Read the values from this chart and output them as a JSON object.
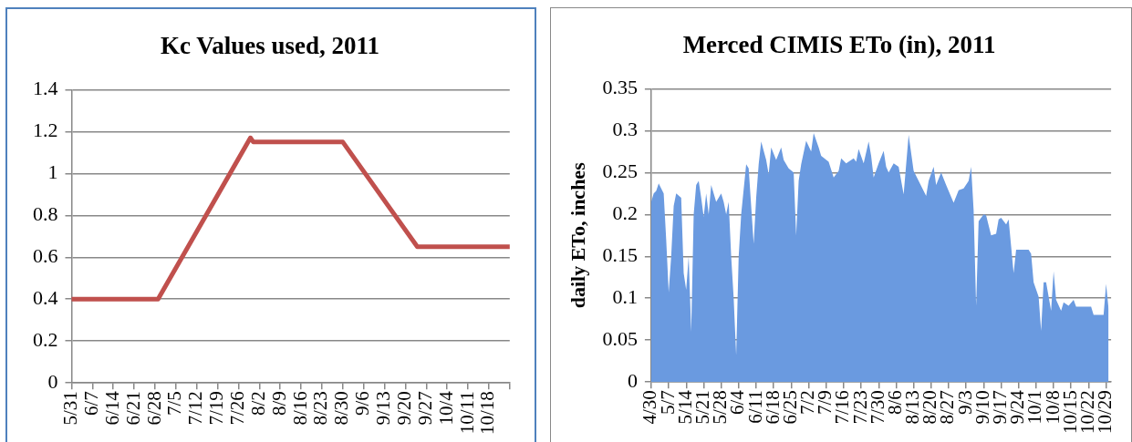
{
  "chart_data": [
    {
      "type": "line",
      "title": "Kc Values used, 2011",
      "color": "#c0504d",
      "marker": "none",
      "line_style": "solid",
      "grid": "y",
      "legend": false,
      "x": [
        "--05-31",
        "--06-29",
        "--07-30",
        "--07-31",
        "--08-30",
        "--09-24",
        "--10-25"
      ],
      "values": [
        0.4,
        0.4,
        1.17,
        1.15,
        1.15,
        0.65,
        0.65
      ],
      "xlim": [
        "--05-31",
        "--10-25"
      ],
      "xticks": [
        {
          "value": "--05-31",
          "label": "5/31"
        },
        {
          "value": "--06-07",
          "label": "6/7"
        },
        {
          "value": "--06-14",
          "label": "6/14"
        },
        {
          "value": "--06-21",
          "label": "6/21"
        },
        {
          "value": "--06-28",
          "label": "6/28"
        },
        {
          "value": "--07-05",
          "label": "7/5"
        },
        {
          "value": "--07-12",
          "label": "7/12"
        },
        {
          "value": "--07-19",
          "label": "7/19"
        },
        {
          "value": "--07-26",
          "label": "7/26"
        },
        {
          "value": "--08-02",
          "label": "8/2"
        },
        {
          "value": "--08-09",
          "label": "8/9"
        },
        {
          "value": "--08-16",
          "label": "8/16"
        },
        {
          "value": "--08-23",
          "label": "8/23"
        },
        {
          "value": "--08-30",
          "label": "8/30"
        },
        {
          "value": "--09-06",
          "label": "9/6"
        },
        {
          "value": "--09-13",
          "label": "9/13"
        },
        {
          "value": "--09-20",
          "label": "9/20"
        },
        {
          "value": "--09-27",
          "label": "9/27"
        },
        {
          "value": "--10-04",
          "label": "10/4"
        },
        {
          "value": "--10-11",
          "label": "10/11"
        },
        {
          "value": "--10-18",
          "label": "10/18"
        },
        {
          "value": "--10-25",
          "label": null
        }
      ],
      "ylim": [
        0,
        1.4
      ],
      "yticks": [
        0,
        0.2,
        0.4,
        0.6,
        0.8,
        1,
        1.2,
        1.4
      ]
    },
    {
      "type": "area",
      "title": "Merced CIMIS ETo (in), 2011",
      "ylabel": "daily ETo, inches",
      "color": "#6a9ae0",
      "marker": "none",
      "grid": "y",
      "legend": false,
      "x": [
        "--04-30",
        "--05-01",
        "--05-02",
        "--05-03",
        "--05-05",
        "--05-06",
        "--05-07",
        "--05-08",
        "--05-09",
        "--05-10",
        "--05-12",
        "--05-13",
        "--05-14",
        "--05-15",
        "--05-16",
        "--05-17",
        "--05-18",
        "--05-19",
        "--05-20",
        "--05-21",
        "--05-22",
        "--05-23",
        "--05-24",
        "--05-26",
        "--05-28",
        "--05-29",
        "--05-30",
        "--05-31",
        "--06-01",
        "--06-02",
        "--06-03",
        "--06-04",
        "--06-05",
        "--06-07",
        "--06-08",
        "--06-10",
        "--06-11",
        "--06-12",
        "--06-13",
        "--06-15",
        "--06-16",
        "--06-17",
        "--06-19",
        "--06-21",
        "--06-22",
        "--06-24",
        "--06-26",
        "--06-27",
        "--06-28",
        "--06-29",
        "--07-01",
        "--07-03",
        "--07-04",
        "--07-06",
        "--07-07",
        "--07-10",
        "--07-12",
        "--07-14",
        "--07-15",
        "--07-17",
        "--07-20",
        "--07-21",
        "--07-22",
        "--07-24",
        "--07-26",
        "--07-27",
        "--07-28",
        "--07-30",
        "--08-01",
        "--08-02",
        "--08-03",
        "--08-05",
        "--08-07",
        "--08-09",
        "--08-11",
        "--08-13",
        "--08-15",
        "--08-18",
        "--08-19",
        "--08-21",
        "--08-22",
        "--08-24",
        "--08-26",
        "--08-29",
        "--08-31",
        "--09-02",
        "--09-04",
        "--09-05",
        "--09-06",
        "--09-07",
        "--09-08",
        "--09-10",
        "--09-11",
        "--09-13",
        "--09-15",
        "--09-16",
        "--09-17",
        "--09-19",
        "--09-20",
        "--09-22",
        "--09-23",
        "--09-26",
        "--09-28",
        "--09-29",
        "--09-30",
        "--10-02",
        "--10-03",
        "--10-04",
        "--10-05",
        "--10-07",
        "--10-08",
        "--10-09",
        "--10-11",
        "--10-12",
        "--10-14",
        "--10-16",
        "--10-17",
        "--10-20",
        "--10-23",
        "--10-24",
        "--10-28",
        "--10-29",
        "--10-30"
      ],
      "values": [
        0.215,
        0.225,
        0.228,
        0.237,
        0.225,
        0.17,
        0.107,
        0.15,
        0.21,
        0.225,
        0.22,
        0.13,
        0.11,
        0.15,
        0.06,
        0.2,
        0.235,
        0.24,
        0.22,
        0.197,
        0.225,
        0.2,
        0.235,
        0.215,
        0.225,
        0.215,
        0.2,
        0.215,
        0.15,
        0.1,
        0.032,
        0.15,
        0.2,
        0.26,
        0.255,
        0.165,
        0.22,
        0.26,
        0.287,
        0.265,
        0.248,
        0.28,
        0.265,
        0.28,
        0.265,
        0.255,
        0.25,
        0.175,
        0.24,
        0.26,
        0.288,
        0.275,
        0.297,
        0.28,
        0.27,
        0.263,
        0.244,
        0.252,
        0.267,
        0.261,
        0.267,
        0.263,
        0.278,
        0.261,
        0.287,
        0.27,
        0.244,
        0.261,
        0.276,
        0.257,
        0.25,
        0.261,
        0.257,
        0.224,
        0.295,
        0.252,
        0.24,
        0.222,
        0.24,
        0.257,
        0.235,
        0.25,
        0.235,
        0.214,
        0.229,
        0.231,
        0.24,
        0.257,
        0.205,
        0.091,
        0.192,
        0.2,
        0.199,
        0.175,
        0.177,
        0.194,
        0.196,
        0.188,
        0.194,
        0.13,
        0.158,
        0.158,
        0.158,
        0.153,
        0.119,
        0.102,
        0.061,
        0.119,
        0.119,
        0.085,
        0.132,
        0.098,
        0.085,
        0.095,
        0.091,
        0.098,
        0.09,
        0.09,
        0.09,
        0.08,
        0.08,
        0.117,
        0.087
      ],
      "xlim": [
        "--04-30",
        "--10-31"
      ],
      "xticks": [
        {
          "value": "--04-30",
          "label": "4/30"
        },
        {
          "value": "--05-07",
          "label": "5/7"
        },
        {
          "value": "--05-14",
          "label": "5/14"
        },
        {
          "value": "--05-21",
          "label": "5/21"
        },
        {
          "value": "--05-28",
          "label": "5/28"
        },
        {
          "value": "--06-04",
          "label": "6/4"
        },
        {
          "value": "--06-11",
          "label": "6/11"
        },
        {
          "value": "--06-18",
          "label": "6/18"
        },
        {
          "value": "--06-25",
          "label": "6/25"
        },
        {
          "value": "--07-02",
          "label": "7/2"
        },
        {
          "value": "--07-09",
          "label": "7/9"
        },
        {
          "value": "--07-16",
          "label": "7/16"
        },
        {
          "value": "--07-23",
          "label": "7/23"
        },
        {
          "value": "--07-30",
          "label": "7/30"
        },
        {
          "value": "--08-06",
          "label": "8/6"
        },
        {
          "value": "--08-13",
          "label": "8/13"
        },
        {
          "value": "--08-20",
          "label": "8/20"
        },
        {
          "value": "--08-27",
          "label": "8/27"
        },
        {
          "value": "--09-03",
          "label": "9/3"
        },
        {
          "value": "--09-10",
          "label": "9/10"
        },
        {
          "value": "--09-17",
          "label": "9/17"
        },
        {
          "value": "--09-24",
          "label": "9/24"
        },
        {
          "value": "--10-01",
          "label": "10/1"
        },
        {
          "value": "--10-08",
          "label": "10/8"
        },
        {
          "value": "--10-15",
          "label": "10/15"
        },
        {
          "value": "--10-22",
          "label": "10/22"
        },
        {
          "value": "--10-29",
          "label": "10/29"
        }
      ],
      "ylim": [
        0,
        0.35
      ],
      "yticks": [
        0,
        0.05,
        0.1,
        0.15,
        0.2,
        0.25,
        0.3,
        0.35
      ]
    }
  ]
}
